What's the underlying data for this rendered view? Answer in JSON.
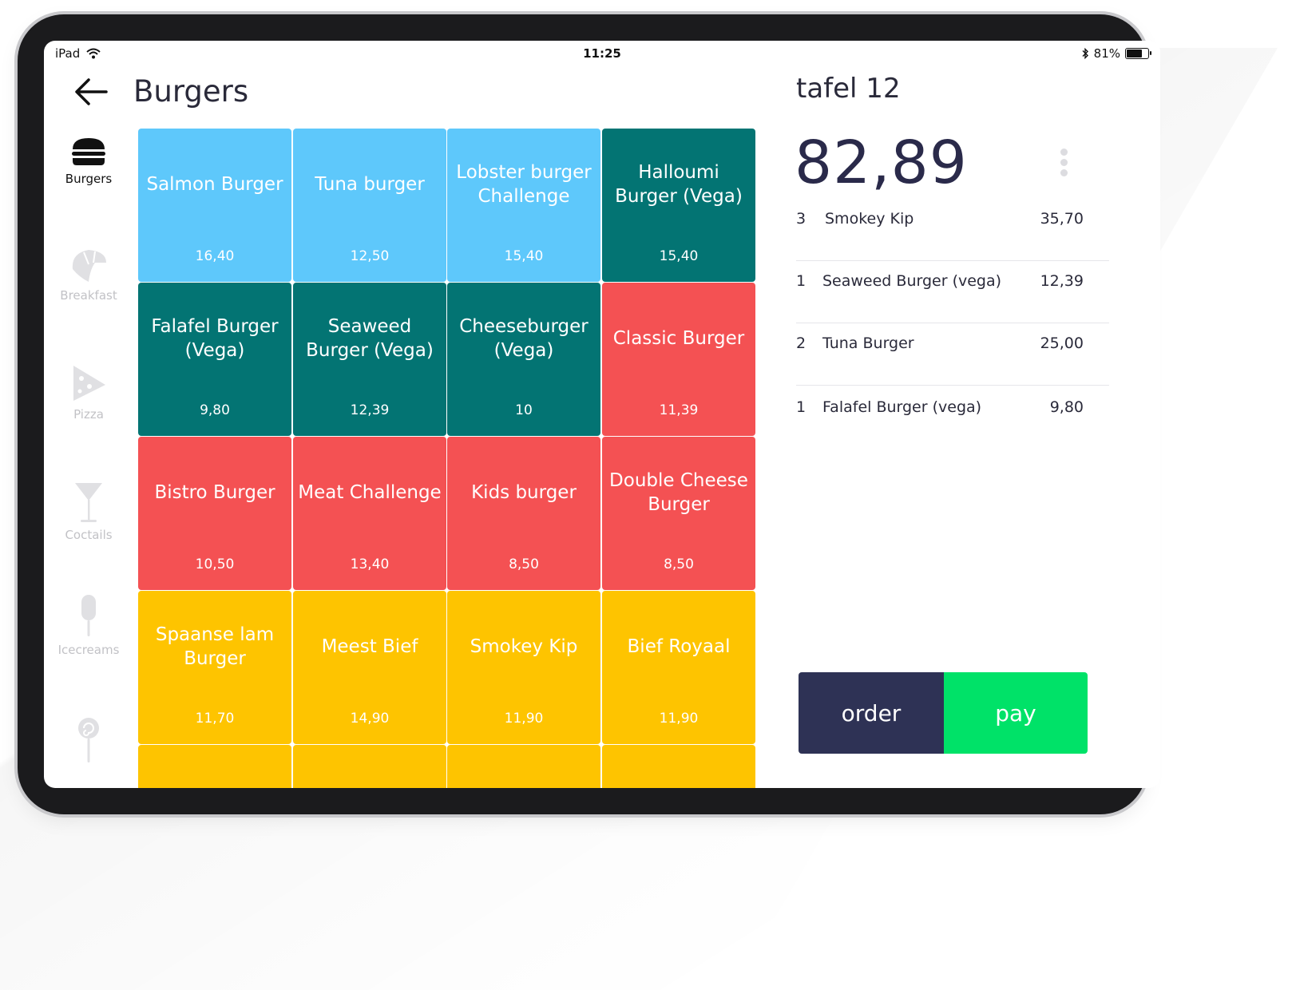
{
  "status_bar": {
    "device": "iPad",
    "time": "11:25",
    "battery": "81%",
    "battery_level": 0.81
  },
  "header": {
    "title": "Burgers"
  },
  "sidebar": {
    "categories": [
      {
        "label": "Burgers",
        "icon": "burger-icon",
        "active": true
      },
      {
        "label": "Breakfast",
        "icon": "croissant-icon",
        "active": false
      },
      {
        "label": "Pizza",
        "icon": "pizza-icon",
        "active": false
      },
      {
        "label": "Coctails",
        "icon": "cocktail-icon",
        "active": false
      },
      {
        "label": "Icecreams",
        "icon": "icecream-icon",
        "active": false
      },
      {
        "label": "",
        "icon": "lollipop-icon",
        "active": false
      }
    ]
  },
  "colors": {
    "light_blue": "#5ec8fb",
    "teal": "#037473",
    "red": "#f45153",
    "yellow": "#fec400",
    "order_button": "#2e3255",
    "pay_button": "#00e268"
  },
  "products": [
    {
      "name": "Salmon Burger",
      "price": "16,40",
      "color": "#5ec8fb"
    },
    {
      "name": "Tuna burger",
      "price": "12,50",
      "color": "#5ec8fb"
    },
    {
      "name": "Lobster burger Challenge",
      "price": "15,40",
      "color": "#5ec8fb"
    },
    {
      "name": "Halloumi Burger (Vega)",
      "price": "15,40",
      "color": "#037473"
    },
    {
      "name": "Falafel Burger (Vega)",
      "price": "9,80",
      "color": "#037473"
    },
    {
      "name": "Seaweed Burger (Vega)",
      "price": "12,39",
      "color": "#037473"
    },
    {
      "name": "Cheeseburger (Vega)",
      "price": "10",
      "color": "#037473"
    },
    {
      "name": "Classic Burger",
      "price": "11,39",
      "color": "#f45153"
    },
    {
      "name": "Bistro Burger",
      "price": "10,50",
      "color": "#f45153"
    },
    {
      "name": "Meat Challenge",
      "price": "13,40",
      "color": "#f45153"
    },
    {
      "name": "Kids burger",
      "price": "8,50",
      "color": "#f45153"
    },
    {
      "name": "Double Cheese Burger",
      "price": "8,50",
      "color": "#f45153"
    },
    {
      "name": "Spaanse lam Burger",
      "price": "11,70",
      "color": "#fec400"
    },
    {
      "name": "Meest Bief",
      "price": "14,90",
      "color": "#fec400"
    },
    {
      "name": "Smokey Kip",
      "price": "11,90",
      "color": "#fec400"
    },
    {
      "name": "Bief Royaal",
      "price": "11,90",
      "color": "#fec400"
    },
    {
      "name": "",
      "price": "",
      "color": "#fec400"
    },
    {
      "name": "",
      "price": "",
      "color": "#fec400"
    },
    {
      "name": "",
      "price": "",
      "color": "#fec400"
    },
    {
      "name": "",
      "price": "",
      "color": "#fec400"
    }
  ],
  "order": {
    "table": "tafel 12",
    "total": "82,89",
    "items": [
      {
        "qty": "3",
        "name": "Smokey Kip",
        "price": "35,70"
      },
      {
        "qty": "1",
        "name": "Seaweed Burger (vega)",
        "price": "12,39"
      },
      {
        "qty": "2",
        "name": "Tuna Burger",
        "price": "25,00"
      },
      {
        "qty": "1",
        "name": "Falafel Burger (vega)",
        "price": "9,80"
      }
    ],
    "order_label": "order",
    "pay_label": "pay"
  }
}
